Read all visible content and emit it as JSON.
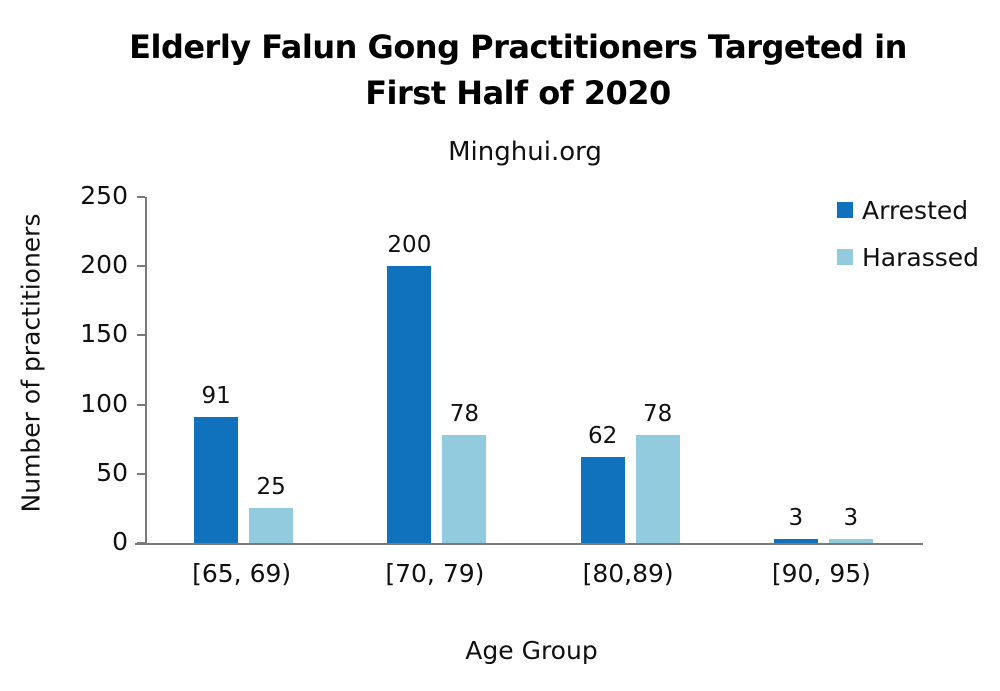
{
  "title": {
    "line1": "Elderly Falun Gong Practitioners Targeted in",
    "line2": "First Half of 2020"
  },
  "subtitle": "Minghui.org",
  "chart_data": {
    "type": "bar",
    "title": "Elderly Falun Gong Practitioners Targeted in First Half of 2020",
    "subtitle": "Minghui.org",
    "categories": [
      "[65, 69)",
      "[70, 79)",
      "[80,89)",
      "[90, 95)"
    ],
    "series": [
      {
        "name": "Arrested",
        "color": "#1072BD",
        "values": [
          91,
          200,
          62,
          3
        ]
      },
      {
        "name": "Harassed",
        "color": "#92CBDD",
        "values": [
          25,
          78,
          78,
          3
        ]
      }
    ],
    "xlabel": "Age Group",
    "ylabel": "Number of practitioners",
    "ylim": [
      0,
      250
    ],
    "yticks": [
      0,
      50,
      100,
      150,
      200,
      250
    ],
    "grid": false,
    "legend_position": "top-right",
    "data_labels": true,
    "axis_color": "#7a7a7a",
    "text_color": "#1a1a1a"
  }
}
